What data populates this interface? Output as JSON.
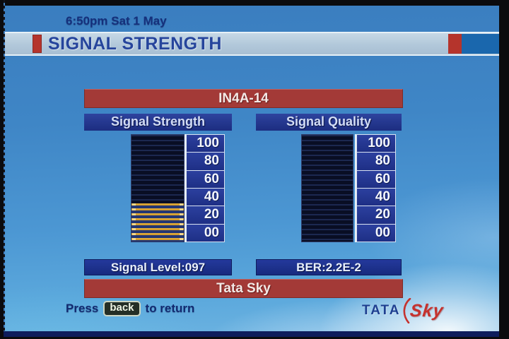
{
  "statusbar": {
    "datetime": "6:50pm Sat 1 May"
  },
  "title": "SIGNAL STRENGTH",
  "transponder_banner": "IN4A-14",
  "provider_banner": "Tata Sky",
  "gauges": [
    {
      "label": "Signal Strength",
      "scale": [
        "100",
        "80",
        "60",
        "40",
        "20",
        "00"
      ],
      "value_percent": 36,
      "reading": "Signal Level:097"
    },
    {
      "label": "Signal Quality",
      "scale": [
        "100",
        "80",
        "60",
        "40",
        "20",
        "00"
      ],
      "value_percent": 0,
      "reading": "BER:2.2E-2"
    }
  ],
  "footer": {
    "press": "Press",
    "back_key": "back",
    "suffix": "to return"
  },
  "logo": {
    "tata": "TATA",
    "sky": "Sky"
  },
  "colors": {
    "banner_red": "#a33a37",
    "box_navy": "#22389a",
    "gauge_fill_yellow": "#d9a232",
    "accent_red": "#b5342c",
    "title_text": "#26459c",
    "sky_background_top": "#3a7dbf",
    "sky_background_bottom": "#6fb5e2"
  }
}
